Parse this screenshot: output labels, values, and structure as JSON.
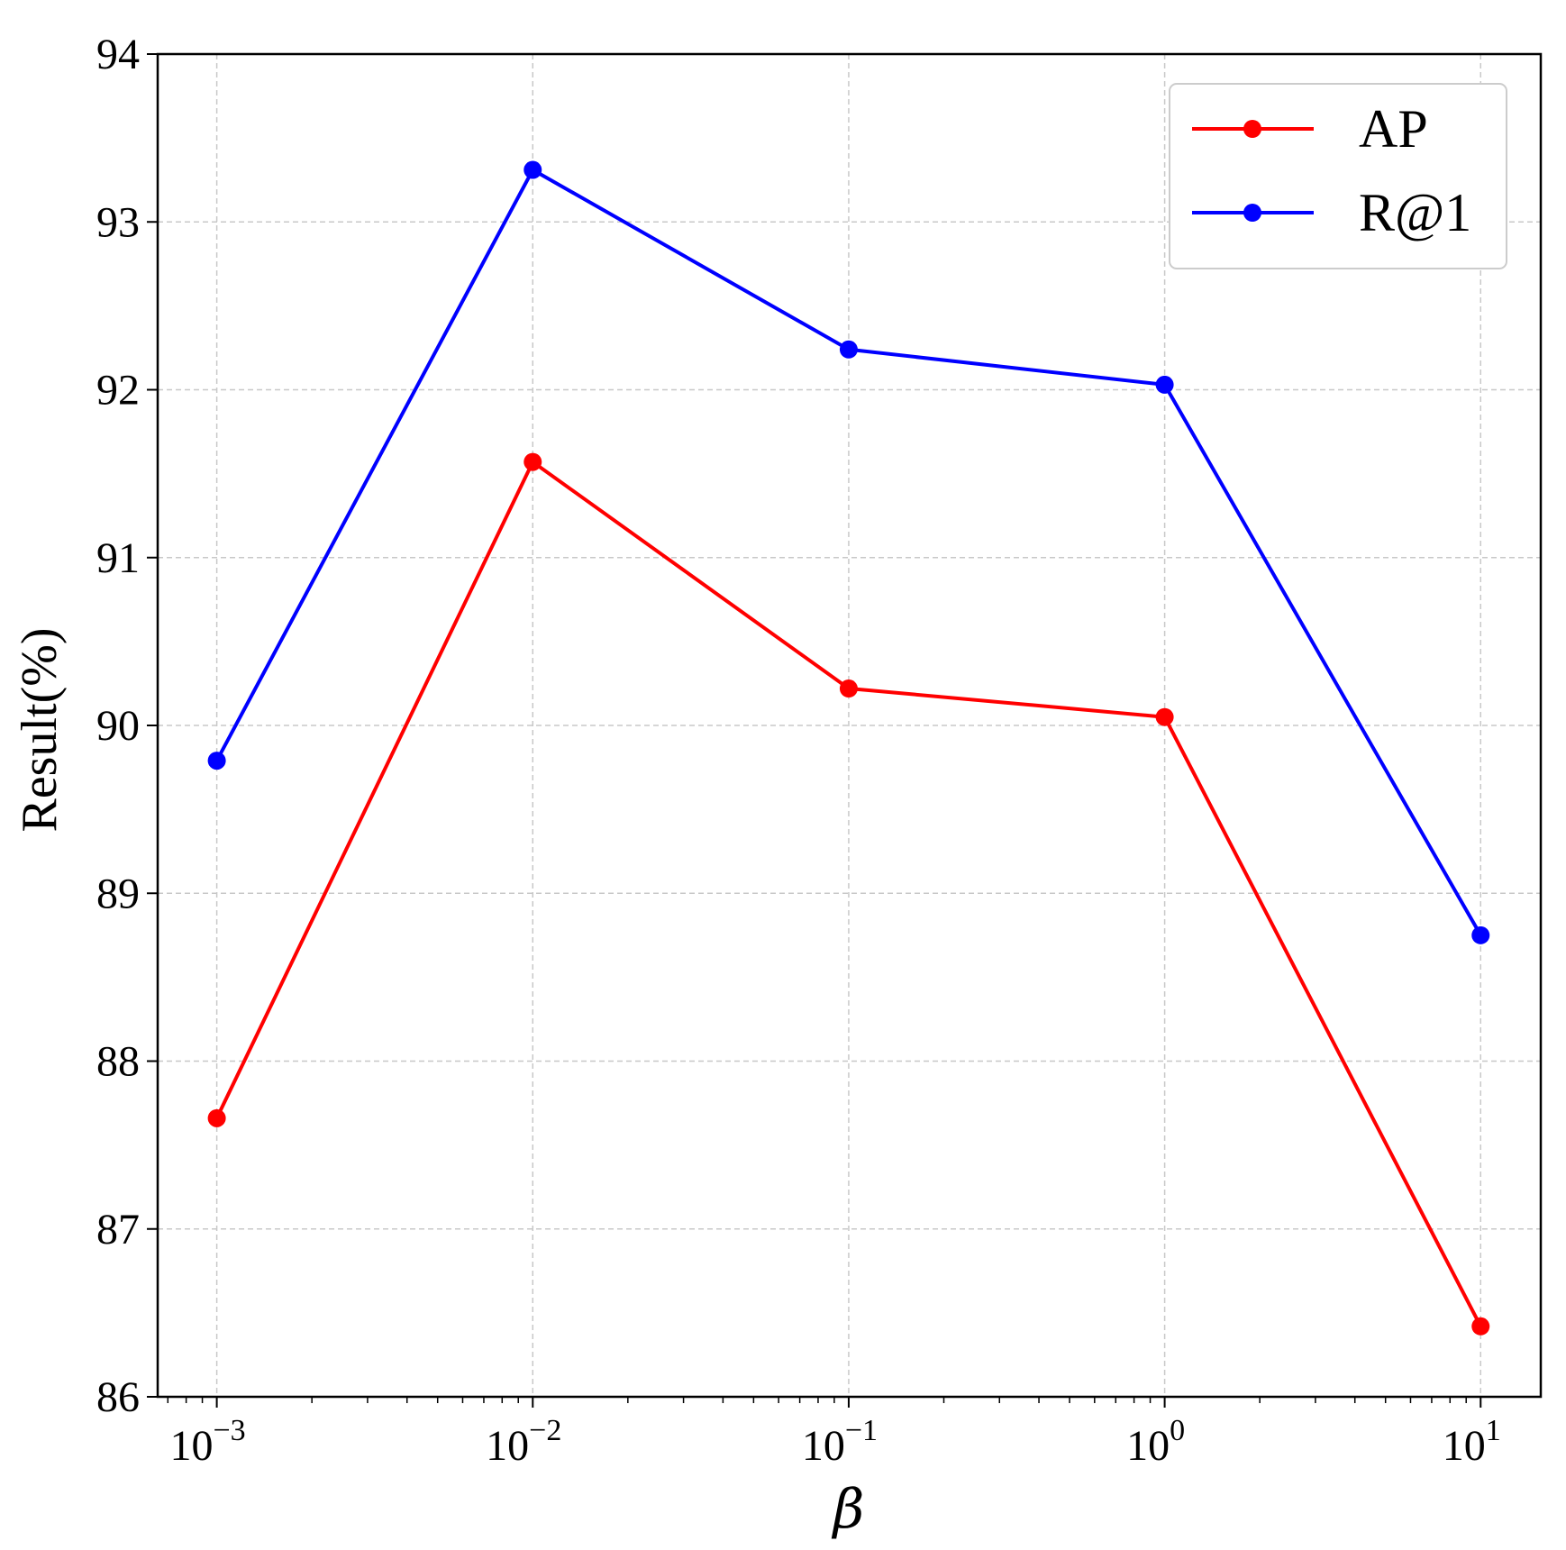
{
  "chart_data": {
    "type": "line",
    "x": [
      0.001,
      0.01,
      0.1,
      1,
      10
    ],
    "x_tick_labels": [
      {
        "base": "10",
        "exp": "−3"
      },
      {
        "base": "10",
        "exp": "−2"
      },
      {
        "base": "10",
        "exp": "−1"
      },
      {
        "base": "10",
        "exp": "0"
      },
      {
        "base": "10",
        "exp": "1"
      }
    ],
    "y_ticks": [
      "86",
      "87",
      "88",
      "89",
      "90",
      "91",
      "92",
      "93",
      "94"
    ],
    "xscale": "log",
    "xlim": [
      0.00065,
      15.5
    ],
    "ylim": [
      86,
      94
    ],
    "xlabel": "β",
    "ylabel": "Result(%)",
    "grid": true,
    "legend_position": "top-right",
    "series": [
      {
        "name": "AP",
        "color": "#ff0000",
        "values": [
          87.66,
          91.57,
          90.22,
          90.05,
          86.42
        ]
      },
      {
        "name": "R@1",
        "color": "#0000ff",
        "values": [
          89.79,
          93.31,
          92.24,
          92.03,
          88.75
        ]
      }
    ]
  }
}
